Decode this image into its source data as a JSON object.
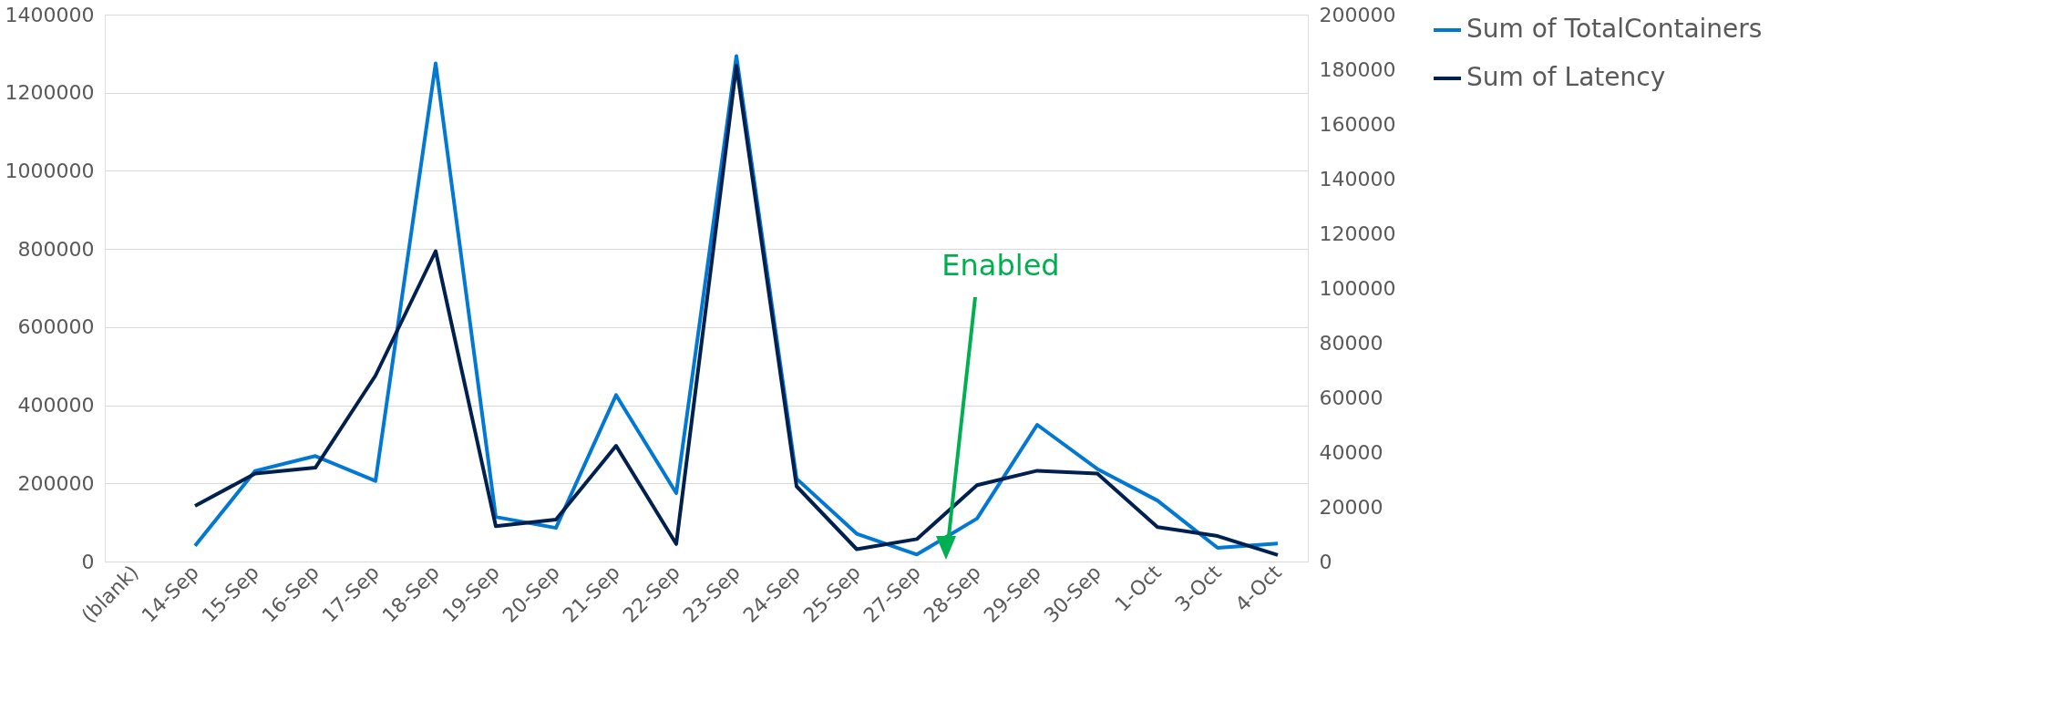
{
  "chart_data": {
    "type": "line",
    "categories": [
      "(blank)",
      "14-Sep",
      "15-Sep",
      "16-Sep",
      "17-Sep",
      "18-Sep",
      "19-Sep",
      "20-Sep",
      "21-Sep",
      "22-Sep",
      "23-Sep",
      "24-Sep",
      "25-Sep",
      "27-Sep",
      "28-Sep",
      "29-Sep",
      "30-Sep",
      "1-Oct",
      "3-Oct",
      "4-Oct"
    ],
    "series": [
      {
        "name": "Sum of TotalContainers",
        "color": "#0078d4",
        "values": [
          null,
          40000,
          232000,
          270000,
          206000,
          1275000,
          114000,
          86000,
          426000,
          175000,
          1294000,
          212000,
          71000,
          18000,
          110000,
          350000,
          237000,
          156000,
          35000,
          46000
        ]
      },
      {
        "name": "Sum of Latency",
        "color": "#002050",
        "axis": "y2",
        "values": [
          null,
          20300,
          32200,
          34300,
          68000,
          113500,
          12900,
          15300,
          42300,
          6400,
          181300,
          27500,
          4500,
          8200,
          27900,
          33200,
          32200,
          12600,
          9300,
          2400
        ]
      }
    ],
    "ylim": [
      0,
      1400000
    ],
    "yticks": [
      0,
      200000,
      400000,
      600000,
      800000,
      1000000,
      1200000,
      1400000
    ],
    "y2lim": [
      0,
      200000
    ],
    "y2ticks": [
      0,
      20000,
      40000,
      60000,
      80000,
      100000,
      120000,
      140000,
      160000,
      180000,
      200000
    ],
    "grid": "y",
    "legend": "top right",
    "line_style": "solid",
    "marker": "none",
    "annotations": [
      "Enabled"
    ]
  }
}
